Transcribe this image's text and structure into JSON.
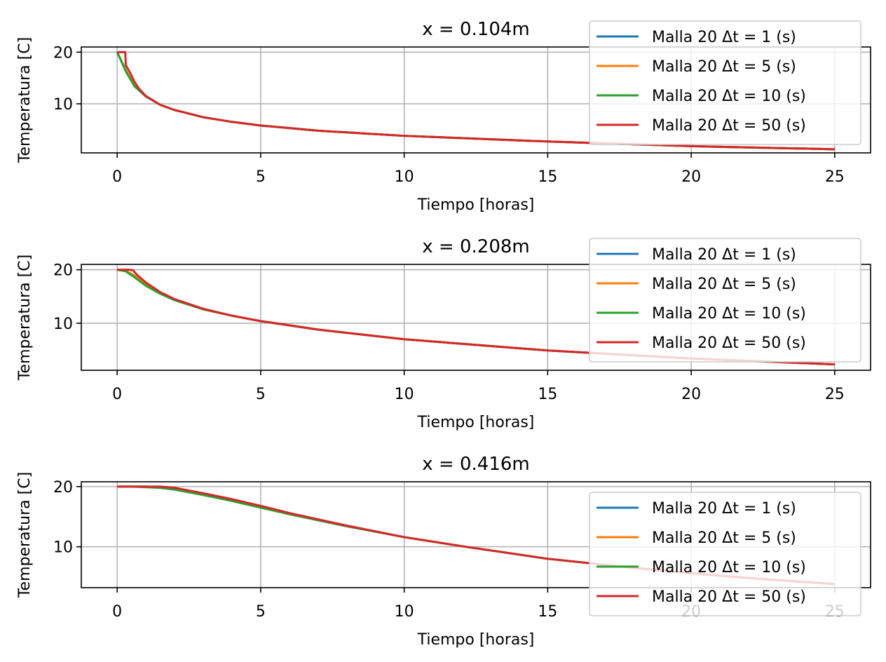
{
  "chart_data": [
    {
      "type": "line",
      "title": "x = 0.104m",
      "xlabel": "Tiempo [horas]",
      "ylabel": "Temperatura [C]",
      "xlim": [
        -1.25,
        26.25
      ],
      "ylim": [
        0.5,
        21
      ],
      "xticks": [
        0,
        5,
        10,
        15,
        20,
        25
      ],
      "yticks": [
        10,
        20
      ],
      "grid": true,
      "legend_position": "upper-right",
      "series": [
        {
          "name": "Malla 20 Δt = 1 (s)",
          "color": "#1f77b4",
          "x": [
            0,
            0.3,
            0.6,
            1,
            1.5,
            2,
            3,
            4,
            5,
            7,
            10,
            15,
            20,
            25
          ],
          "y": [
            20,
            16.5,
            13.5,
            11.5,
            9.8,
            8.8,
            7.4,
            6.5,
            5.8,
            4.8,
            3.8,
            2.7,
            1.8,
            1.2
          ]
        },
        {
          "name": "Malla 20 Δt = 5 (s)",
          "color": "#ff7f0e",
          "x": [
            0,
            0.3,
            0.6,
            1,
            1.5,
            2,
            3,
            4,
            5,
            7,
            10,
            15,
            20,
            25
          ],
          "y": [
            20,
            16.5,
            13.5,
            11.5,
            9.8,
            8.8,
            7.4,
            6.5,
            5.8,
            4.8,
            3.8,
            2.7,
            1.8,
            1.2
          ]
        },
        {
          "name": "Malla 20 Δt = 10 (s)",
          "color": "#2ca02c",
          "x": [
            0,
            0.3,
            0.6,
            1,
            1.5,
            2,
            3,
            4,
            5,
            7,
            10,
            15,
            20,
            25
          ],
          "y": [
            20,
            16.3,
            13.4,
            11.4,
            9.8,
            8.8,
            7.4,
            6.5,
            5.8,
            4.8,
            3.8,
            2.7,
            1.8,
            1.2
          ]
        },
        {
          "name": "Malla 20 Δt = 50 (s)",
          "color": "#d62728",
          "x": [
            0,
            0.28,
            0.3,
            0.45,
            0.6,
            0.75,
            1,
            1.5,
            2,
            3,
            4,
            5,
            7,
            10,
            15,
            20,
            25
          ],
          "y": [
            20,
            20,
            17.5,
            16,
            14.3,
            13,
            11.5,
            9.8,
            8.8,
            7.4,
            6.5,
            5.8,
            4.8,
            3.8,
            2.7,
            1.8,
            1.2
          ]
        }
      ]
    },
    {
      "type": "line",
      "title": "x = 0.208m",
      "xlabel": "Tiempo [horas]",
      "ylabel": "Temperatura [C]",
      "xlim": [
        -1.25,
        26.25
      ],
      "ylim": [
        1.2,
        21
      ],
      "xticks": [
        0,
        5,
        10,
        15,
        20,
        25
      ],
      "yticks": [
        10,
        20
      ],
      "grid": true,
      "legend_position": "upper-right",
      "series": [
        {
          "name": "Malla 20 Δt = 1 (s)",
          "color": "#1f77b4",
          "x": [
            0,
            0.3,
            0.6,
            1,
            1.5,
            2,
            3,
            4,
            5,
            7,
            10,
            15,
            20,
            25
          ],
          "y": [
            20,
            19.8,
            18.9,
            17.2,
            15.6,
            14.4,
            12.6,
            11.4,
            10.4,
            8.8,
            7,
            4.9,
            3.4,
            2.3
          ]
        },
        {
          "name": "Malla 20 Δt = 5 (s)",
          "color": "#ff7f0e",
          "x": [
            0,
            0.3,
            0.6,
            1,
            1.5,
            2,
            3,
            4,
            5,
            7,
            10,
            15,
            20,
            25
          ],
          "y": [
            20,
            19.8,
            18.9,
            17.2,
            15.6,
            14.4,
            12.6,
            11.4,
            10.4,
            8.8,
            7,
            4.9,
            3.4,
            2.3
          ]
        },
        {
          "name": "Malla 20 Δt = 10 (s)",
          "color": "#2ca02c",
          "x": [
            0,
            0.3,
            0.6,
            1,
            1.5,
            2,
            3,
            4,
            5,
            7,
            10,
            15,
            20,
            25
          ],
          "y": [
            20,
            19.7,
            18.6,
            17,
            15.5,
            14.3,
            12.6,
            11.4,
            10.4,
            8.8,
            7,
            4.9,
            3.4,
            2.3
          ]
        },
        {
          "name": "Malla 20 Δt = 50 (s)",
          "color": "#d62728",
          "x": [
            0,
            0.4,
            0.55,
            0.7,
            1,
            1.5,
            2,
            3,
            4,
            5,
            7,
            10,
            15,
            20,
            25
          ],
          "y": [
            20,
            20,
            19.9,
            19,
            17.6,
            15.8,
            14.5,
            12.7,
            11.4,
            10.4,
            8.8,
            7,
            4.9,
            3.4,
            2.3
          ]
        }
      ]
    },
    {
      "type": "line",
      "title": "x = 0.416m",
      "xlabel": "Tiempo [horas]",
      "ylabel": "Temperatura [C]",
      "xlim": [
        -1.25,
        26.25
      ],
      "ylim": [
        3.2,
        20.8
      ],
      "xticks": [
        0,
        5,
        10,
        15,
        20,
        25
      ],
      "yticks": [
        10,
        20
      ],
      "grid": true,
      "legend_position": "lower-right",
      "series": [
        {
          "name": "Malla 20 Δt = 1 (s)",
          "color": "#1f77b4",
          "x": [
            0,
            0.5,
            1,
            1.5,
            2,
            3,
            4,
            5,
            6,
            8,
            10,
            12,
            15,
            18,
            20,
            22,
            25
          ],
          "y": [
            20,
            20,
            20,
            19.9,
            19.6,
            18.7,
            17.7,
            16.6,
            15.5,
            13.5,
            11.6,
            10.1,
            8,
            6.5,
            5.6,
            4.8,
            3.8
          ]
        },
        {
          "name": "Malla 20 Δt = 5 (s)",
          "color": "#ff7f0e",
          "x": [
            0,
            0.5,
            1,
            1.5,
            2,
            3,
            4,
            5,
            6,
            8,
            10,
            12,
            15,
            18,
            20,
            22,
            25
          ],
          "y": [
            20,
            20,
            20,
            19.9,
            19.6,
            18.7,
            17.7,
            16.6,
            15.5,
            13.5,
            11.6,
            10.1,
            8,
            6.5,
            5.6,
            4.8,
            3.8
          ]
        },
        {
          "name": "Malla 20 Δt = 10 (s)",
          "color": "#2ca02c",
          "x": [
            0,
            0.5,
            1,
            1.5,
            2,
            3,
            4,
            5,
            6,
            8,
            10,
            12,
            15,
            18,
            20,
            22,
            25
          ],
          "y": [
            20,
            20,
            19.9,
            19.8,
            19.5,
            18.6,
            17.6,
            16.5,
            15.4,
            13.4,
            11.6,
            10.1,
            8,
            6.5,
            5.6,
            4.8,
            3.8
          ]
        },
        {
          "name": "Malla 20 Δt = 50 (s)",
          "color": "#d62728",
          "x": [
            0,
            0.5,
            1,
            1.5,
            2,
            3,
            4,
            5,
            6,
            8,
            10,
            12,
            15,
            18,
            20,
            22,
            25
          ],
          "y": [
            20,
            20,
            20,
            20,
            19.8,
            18.9,
            17.9,
            16.8,
            15.6,
            13.5,
            11.6,
            10.1,
            8,
            6.5,
            5.6,
            4.8,
            3.8
          ]
        }
      ]
    }
  ]
}
